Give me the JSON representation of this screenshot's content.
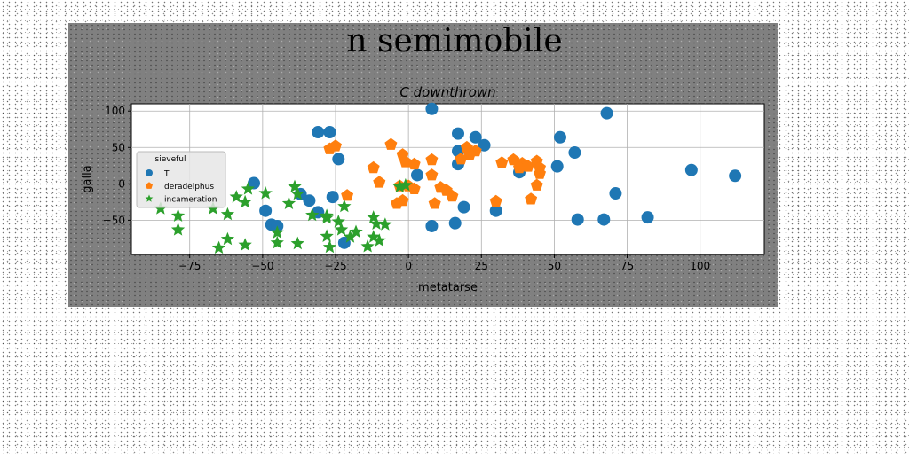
{
  "figure_title": "n semimobile",
  "chart_data": {
    "type": "scatter",
    "title": "C downthrown",
    "xlabel": "metatarse",
    "ylabel": "galla",
    "xlim": [
      -95,
      122
    ],
    "ylim": [
      -97,
      110
    ],
    "xticks": [
      -75,
      -50,
      -25,
      0,
      25,
      50,
      75,
      100
    ],
    "yticks": [
      -50,
      0,
      50,
      100
    ],
    "grid": true,
    "legend": {
      "title": "sieveful",
      "placement": "center-left"
    },
    "series": [
      {
        "name": "T",
        "marker": "circle",
        "color": "#1f77b4",
        "points": [
          [
            8,
            103
          ],
          [
            68,
            97
          ],
          [
            -31,
            71
          ],
          [
            -27,
            71
          ],
          [
            17,
            69
          ],
          [
            23,
            64
          ],
          [
            52,
            64
          ],
          [
            26,
            53
          ],
          [
            57,
            43
          ],
          [
            17,
            45
          ],
          [
            -24,
            34
          ],
          [
            17,
            27
          ],
          [
            51,
            24
          ],
          [
            97,
            19
          ],
          [
            112,
            11
          ],
          [
            3,
            12
          ],
          [
            38,
            16
          ],
          [
            -53,
            1
          ],
          [
            -37,
            -14
          ],
          [
            -34,
            -23
          ],
          [
            -26,
            -18
          ],
          [
            71,
            -13
          ],
          [
            -49,
            -37
          ],
          [
            -31,
            -39
          ],
          [
            19,
            -32
          ],
          [
            30,
            -37
          ],
          [
            -47,
            -56
          ],
          [
            -45,
            -58
          ],
          [
            8,
            -58
          ],
          [
            16,
            -54
          ],
          [
            58,
            -49
          ],
          [
            67,
            -49
          ],
          [
            82,
            -46
          ],
          [
            -22,
            -81
          ]
        ]
      },
      {
        "name": "deradelphus",
        "marker": "pentagon",
        "color": "#ff7f0e",
        "points": [
          [
            -6,
            54
          ],
          [
            -27,
            48
          ],
          [
            -25,
            52
          ],
          [
            -2,
            40
          ],
          [
            -1,
            30
          ],
          [
            2,
            27
          ],
          [
            8,
            33
          ],
          [
            20,
            50
          ],
          [
            23,
            45
          ],
          [
            21,
            40
          ],
          [
            18,
            34
          ],
          [
            32,
            29
          ],
          [
            36,
            33
          ],
          [
            39,
            28
          ],
          [
            38,
            22
          ],
          [
            41,
            24
          ],
          [
            44,
            31
          ],
          [
            45,
            22
          ],
          [
            45,
            14
          ],
          [
            -12,
            22
          ],
          [
            -10,
            2
          ],
          [
            -3,
            -3
          ],
          [
            0,
            -3
          ],
          [
            2,
            -7
          ],
          [
            8,
            12
          ],
          [
            11,
            -5
          ],
          [
            13,
            -9
          ],
          [
            15,
            -17
          ],
          [
            -2,
            -23
          ],
          [
            -4,
            -27
          ],
          [
            9,
            -27
          ],
          [
            30,
            -24
          ],
          [
            42,
            -21
          ],
          [
            44,
            -2
          ],
          [
            -21,
            -16
          ]
        ]
      },
      {
        "name": "incameration",
        "marker": "star",
        "color": "#2ca02c",
        "points": [
          [
            -55,
            -7
          ],
          [
            -49,
            -13
          ],
          [
            -39,
            -4
          ],
          [
            -38,
            -14
          ],
          [
            -85,
            -34
          ],
          [
            -79,
            -44
          ],
          [
            -67,
            -34
          ],
          [
            -62,
            -42
          ],
          [
            -59,
            -18
          ],
          [
            -56,
            -25
          ],
          [
            -41,
            -27
          ],
          [
            -33,
            -43
          ],
          [
            -28,
            -47
          ],
          [
            -22,
            -31
          ],
          [
            -12,
            -46
          ],
          [
            -79,
            -63
          ],
          [
            -62,
            -76
          ],
          [
            -56,
            -84
          ],
          [
            -45,
            -81
          ],
          [
            -45,
            -67
          ],
          [
            -38,
            -82
          ],
          [
            -28,
            -72
          ],
          [
            -27,
            -87
          ],
          [
            -23,
            -63
          ],
          [
            -20,
            -73
          ],
          [
            -18,
            -66
          ],
          [
            -14,
            -86
          ],
          [
            -12,
            -73
          ],
          [
            -10,
            -78
          ],
          [
            -11,
            -55
          ],
          [
            -8,
            -56
          ],
          [
            -65,
            -88
          ],
          [
            -3,
            -4
          ],
          [
            -1,
            -2
          ],
          [
            -28,
            -44
          ],
          [
            -24,
            -52
          ]
        ]
      }
    ]
  }
}
